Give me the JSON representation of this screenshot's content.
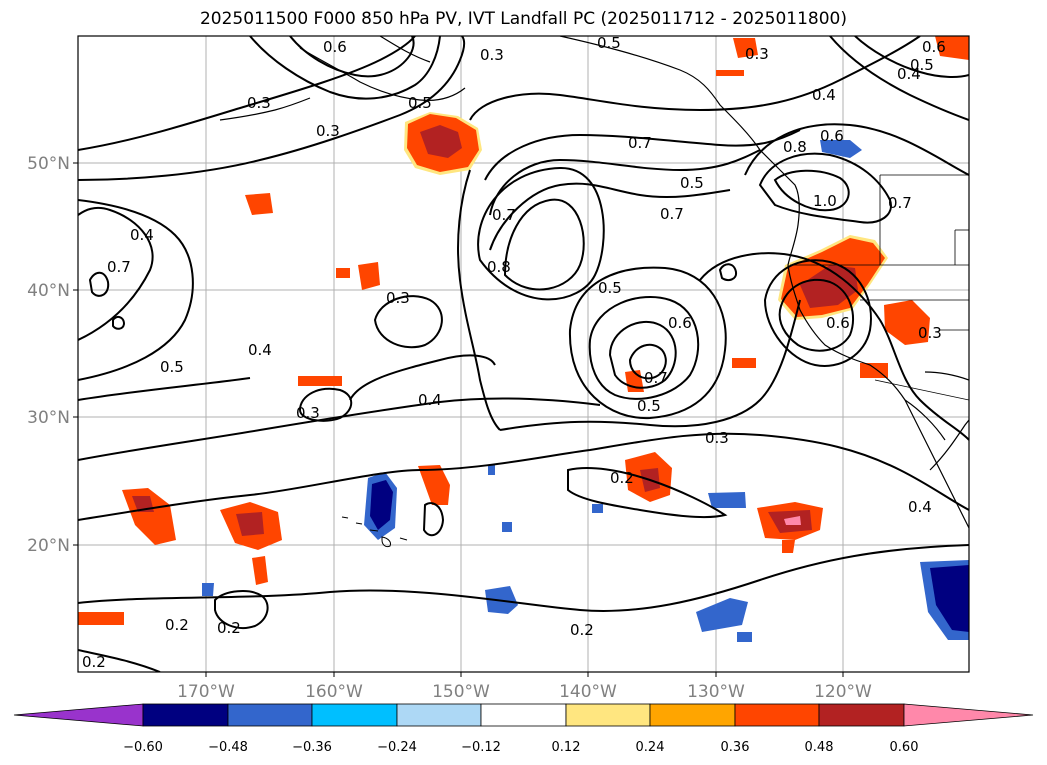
{
  "title": "2025011500 F000 850 hPa PV, IVT Landfall PC (2025011712 - 2025011800)",
  "lon_ticks": [
    "170°W",
    "160°W",
    "150°W",
    "140°W",
    "130°W",
    "120°W"
  ],
  "lat_ticks": [
    "50°N",
    "40°N",
    "30°N",
    "20°N"
  ],
  "contour_labels": [
    "0.3",
    "0.5",
    "0.6",
    "0.4",
    "0.7",
    "0.8",
    "1.0",
    "0.2"
  ],
  "colorbar": {
    "ticks": [
      "−0.60",
      "−0.48",
      "−0.36",
      "−0.24",
      "−0.12",
      "0.12",
      "0.24",
      "0.36",
      "0.48",
      "0.60"
    ],
    "colors": [
      "#9933cc",
      "#000080",
      "#3366cc",
      "#00bfff",
      "#add8f5",
      "#ffffff",
      "#ffe680",
      "#ffa500",
      "#ff4500",
      "#b22222",
      "#ff88aa"
    ]
  }
}
